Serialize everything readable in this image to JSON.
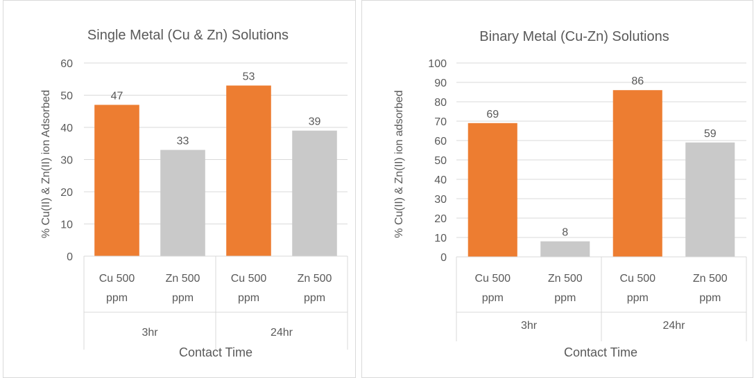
{
  "chart_data": [
    {
      "type": "bar",
      "title": "Single Metal (Cu & Zn) Solutions",
      "xlabel": "Contact Time",
      "ylabel": "% Cu(II) & Zn(II) ion Adsorbed",
      "ylim": [
        0,
        60
      ],
      "ytick_step": 10,
      "yticks": [
        "0",
        "10",
        "20",
        "30",
        "40",
        "50",
        "60"
      ],
      "grid": true,
      "legend": "none",
      "groups": [
        {
          "label": "3hr",
          "categories": [
            "Cu 500 ppm",
            "Zn 500 ppm"
          ]
        },
        {
          "label": "24hr",
          "categories": [
            "Cu 500 ppm",
            "Zn 500 ppm"
          ]
        }
      ],
      "categories": [
        "Cu 500 ppm",
        "Zn 500 ppm",
        "Cu 500 ppm",
        "Zn 500 ppm"
      ],
      "category_lines": [
        [
          "Cu 500",
          "ppm"
        ],
        [
          "Zn 500",
          "ppm"
        ],
        [
          "Cu 500",
          "ppm"
        ],
        [
          "Zn 500",
          "ppm"
        ]
      ],
      "values": [
        47,
        33,
        53,
        39
      ],
      "data_labels": [
        "47",
        "33",
        "53",
        "39"
      ],
      "colors": [
        "#ed7d31",
        "#c9c9c9",
        "#ed7d31",
        "#c9c9c9"
      ]
    },
    {
      "type": "bar",
      "title": "Binary Metal (Cu-Zn) Solutions",
      "xlabel": "Contact Time",
      "ylabel": "% Cu(II) & Zn(II)  ion adsorbed",
      "ylim": [
        0,
        100
      ],
      "ytick_step": 10,
      "yticks": [
        "0",
        "10",
        "20",
        "30",
        "40",
        "50",
        "60",
        "70",
        "80",
        "90",
        "100"
      ],
      "grid": true,
      "legend": "none",
      "groups": [
        {
          "label": "3hr",
          "categories": [
            "Cu 500 ppm",
            "Zn 500 ppm"
          ]
        },
        {
          "label": "24hr",
          "categories": [
            "Cu 500 ppm",
            "Zn 500 ppm"
          ]
        }
      ],
      "categories": [
        "Cu 500 ppm",
        "Zn 500 ppm",
        "Cu 500 ppm",
        "Zn 500 ppm"
      ],
      "category_lines": [
        [
          "Cu 500",
          "ppm"
        ],
        [
          "Zn 500",
          "ppm"
        ],
        [
          "Cu 500",
          "ppm"
        ],
        [
          "Zn 500",
          "ppm"
        ]
      ],
      "values": [
        69,
        8,
        86,
        59
      ],
      "data_labels": [
        "69",
        "8",
        "86",
        "59"
      ],
      "colors": [
        "#ed7d31",
        "#c9c9c9",
        "#ed7d31",
        "#c9c9c9"
      ]
    }
  ]
}
